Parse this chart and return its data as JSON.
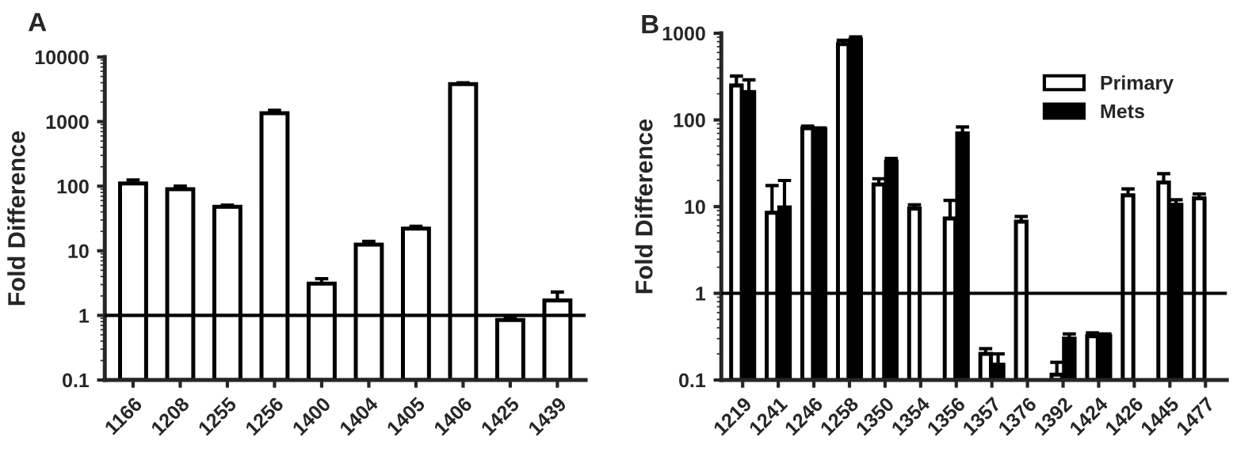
{
  "chart_data": [
    {
      "type": "bar",
      "title": "A",
      "ylabel": "Fold Difference",
      "log": "y",
      "categories": [
        "1166",
        "1208",
        "1255",
        "1256",
        "1400",
        "1404",
        "1405",
        "1406",
        "1425",
        "1439"
      ],
      "series": [
        {
          "color": "#ffffff",
          "values": [
            110,
            90,
            48,
            1350,
            3.1,
            12.5,
            22,
            3800,
            0.85,
            1.7
          ],
          "errors": [
            [
              110,
              125
            ],
            [
              90,
              100
            ],
            [
              48,
              51
            ],
            [
              1350,
              1500
            ],
            [
              3.1,
              3.7
            ],
            [
              12.5,
              14
            ],
            [
              22,
              24
            ],
            [
              3800,
              4000
            ],
            [
              0.85,
              0.9
            ],
            [
              1.7,
              2.3
            ]
          ]
        }
      ],
      "ylim": [
        0.1,
        10000
      ],
      "yticks": [
        0.1,
        1,
        10,
        100,
        1000,
        10000
      ],
      "ref_lines": [
        {
          "axis": "y",
          "value": 1,
          "color": "#000000"
        }
      ],
      "legend": false,
      "grid": false
    },
    {
      "type": "bar",
      "title": "B",
      "ylabel": "Fold Difference",
      "log": "y",
      "categories": [
        "1219",
        "1241",
        "1246",
        "1258",
        "1350",
        "1354",
        "1356",
        "1357",
        "1376",
        "1392",
        "1424",
        "1426",
        "1445",
        "1477"
      ],
      "series": [
        {
          "name": "Primary",
          "color": "#ffffff",
          "values": [
            250,
            8.5,
            80,
            750,
            18,
            9.5,
            7.3,
            0.2,
            6.7,
            0.115,
            0.32,
            13.5,
            19,
            12.5
          ],
          "errors": [
            [
              250,
              320
            ],
            [
              8.5,
              17.5
            ],
            [
              80,
              85
            ],
            [
              750,
              830
            ],
            [
              18,
              21
            ],
            [
              9.5,
              10.5
            ],
            [
              7.3,
              11.8
            ],
            [
              0.2,
              0.23
            ],
            [
              6.7,
              7.7
            ],
            [
              0.115,
              0.16
            ],
            [
              0.32,
              0.35
            ],
            [
              13.5,
              16
            ],
            [
              19,
              24
            ],
            [
              12.5,
              14
            ]
          ]
        },
        {
          "name": "Mets",
          "color": "#000000",
          "values": [
            210,
            9.8,
            78,
            850,
            33,
            null,
            70,
            0.15,
            null,
            0.3,
            0.32,
            null,
            10.5,
            null
          ],
          "errors": [
            [
              210,
              290
            ],
            [
              9.8,
              20
            ],
            [
              78,
              81
            ],
            [
              850,
              910
            ],
            [
              33,
              36
            ],
            null,
            [
              70,
              83
            ],
            [
              0.15,
              0.2
            ],
            null,
            [
              0.3,
              0.34
            ],
            [
              0.32,
              0.34
            ],
            null,
            [
              10.5,
              12
            ],
            null
          ]
        }
      ],
      "ylim": [
        0.1,
        1000
      ],
      "yticks": [
        0.1,
        1,
        10,
        100,
        1000
      ],
      "ref_lines": [
        {
          "axis": "y",
          "value": 1,
          "color": "#000000"
        }
      ],
      "legend": "top right",
      "grid": false
    }
  ]
}
